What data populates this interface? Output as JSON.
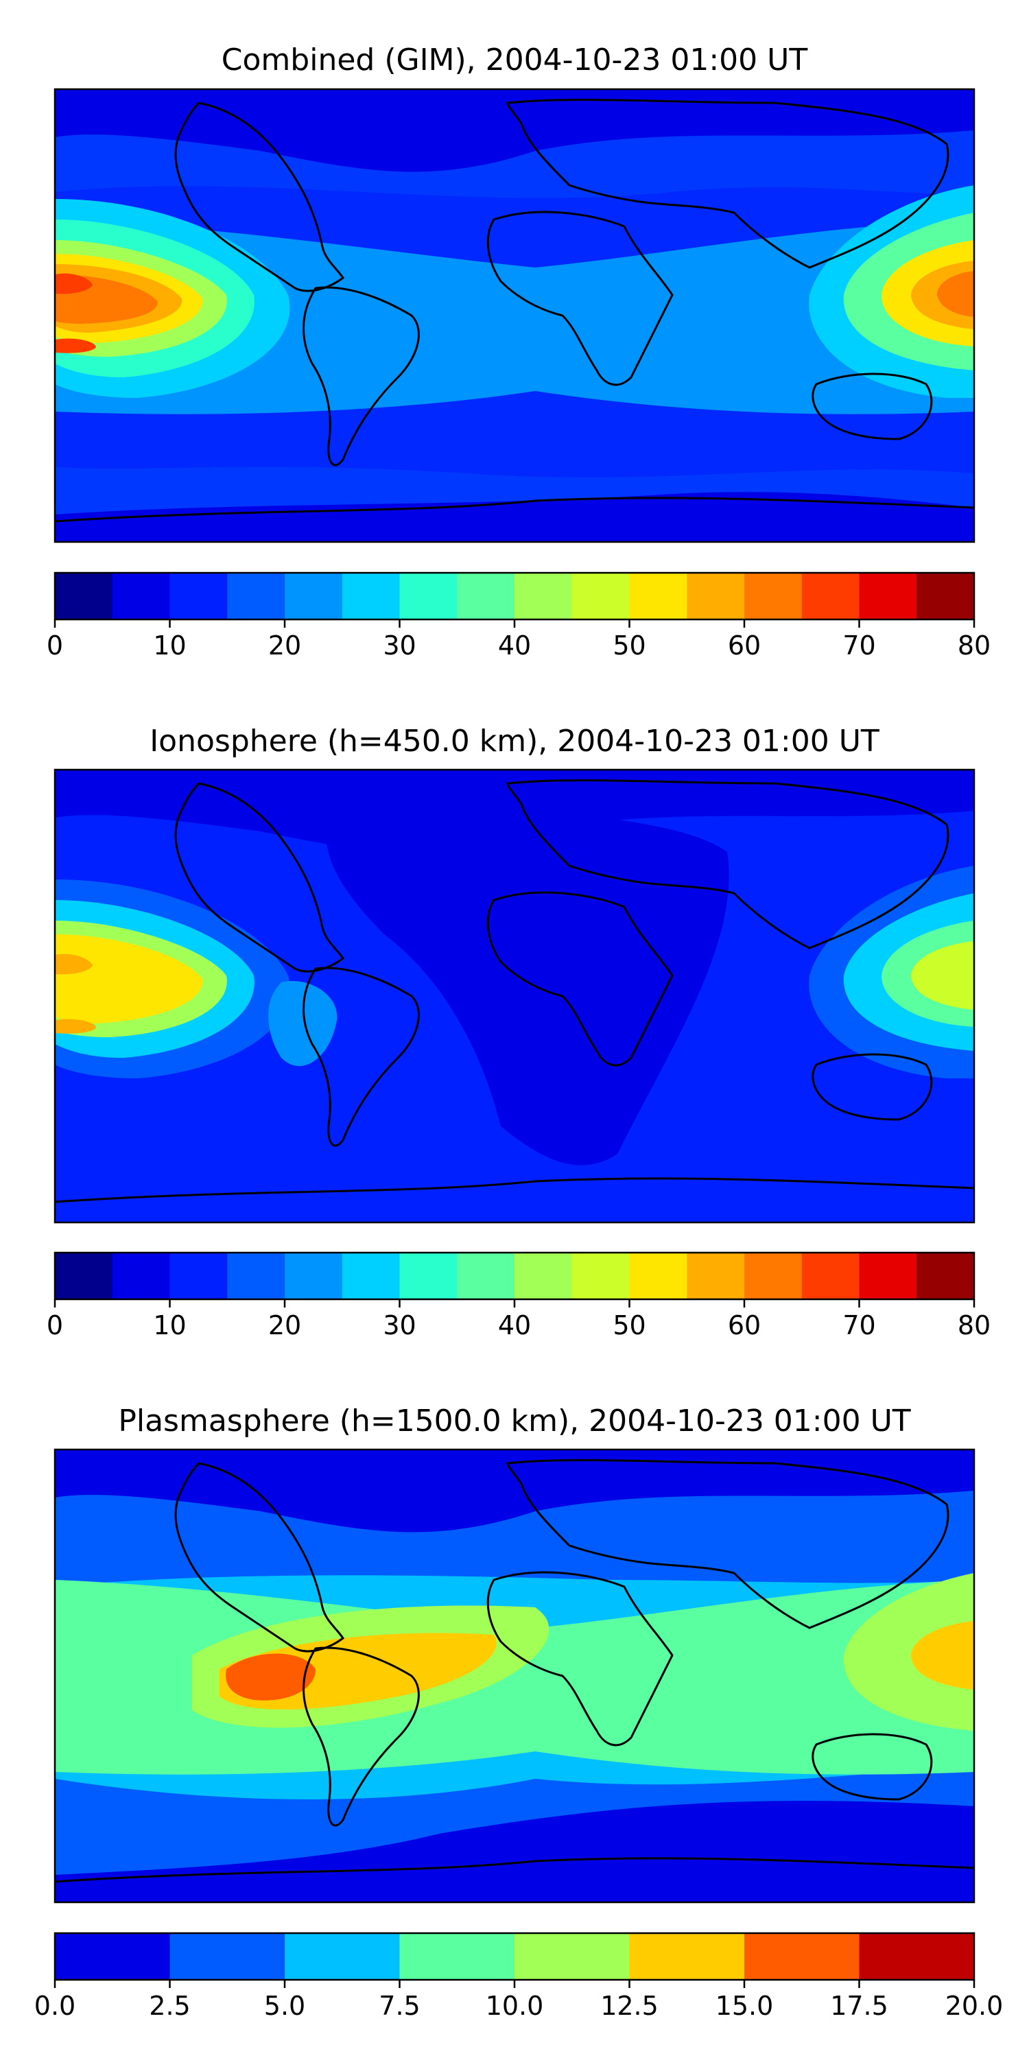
{
  "panels": [
    {
      "title": "Combined (GIM), 2004-10-23 01:00 UT",
      "colorbar": {
        "ticks": [
          "0",
          "10",
          "20",
          "30",
          "40",
          "50",
          "60",
          "70",
          "80"
        ],
        "min": 0,
        "max": 80,
        "step": 5,
        "colors": [
          "#00008c",
          "#0000e6",
          "#0020ff",
          "#005cff",
          "#0094ff",
          "#00d0ff",
          "#29ffcd",
          "#5affa0",
          "#a2ff55",
          "#ccff29",
          "#ffe600",
          "#ffae00",
          "#ff7800",
          "#ff3c00",
          "#e60000",
          "#960000"
        ]
      },
      "background": "#0038ff",
      "fields": [
        {
          "color": "#0028ff",
          "shape": "equator-belt-wide"
        },
        {
          "color": "#0094ff",
          "shape": "belt"
        },
        {
          "color": "#00d0ff",
          "shape": "pacific-west-large"
        },
        {
          "color": "#29ffcd",
          "shape": "pacific-west-mid"
        },
        {
          "color": "#a2ff55",
          "shape": "pacific-west-inner"
        },
        {
          "color": "#ffe600",
          "shape": "pacific-west-core"
        },
        {
          "color": "#ffae00",
          "shape": "pacific-west-core2"
        },
        {
          "color": "#ff7800",
          "shape": "pacific-west-peak"
        },
        {
          "color": "#ff3c00",
          "shape": "pacific-west-spot"
        },
        {
          "color": "#00d0ff",
          "shape": "asia-east-large"
        },
        {
          "color": "#5affa0",
          "shape": "asia-east-mid"
        },
        {
          "color": "#ffe600",
          "shape": "asia-east-inner"
        },
        {
          "color": "#ffae00",
          "shape": "asia-east-core"
        },
        {
          "color": "#ff7800",
          "shape": "asia-east-peak"
        },
        {
          "color": "#0000e6",
          "shape": "north-dark"
        },
        {
          "color": "#0000e6",
          "shape": "south-dark"
        }
      ]
    },
    {
      "title": "Ionosphere  (h=450.0 km), 2004-10-23 01:00 UT",
      "colorbar": {
        "ticks": [
          "0",
          "10",
          "20",
          "30",
          "40",
          "50",
          "60",
          "70",
          "80"
        ],
        "min": 0,
        "max": 80,
        "step": 5,
        "colors": [
          "#00008c",
          "#0000e6",
          "#0020ff",
          "#005cff",
          "#0094ff",
          "#00d0ff",
          "#29ffcd",
          "#5affa0",
          "#a2ff55",
          "#ccff29",
          "#ffe600",
          "#ffae00",
          "#ff7800",
          "#ff3c00",
          "#e60000",
          "#960000"
        ]
      },
      "background": "#0020ff",
      "fields": [
        {
          "color": "#0000e6",
          "shape": "africa-dark"
        },
        {
          "color": "#0000e6",
          "shape": "north-dark"
        },
        {
          "color": "#005cff",
          "shape": "pacific-west-large"
        },
        {
          "color": "#00d0ff",
          "shape": "pacific-west-mid"
        },
        {
          "color": "#a2ff55",
          "shape": "pacific-west-inner"
        },
        {
          "color": "#ffe600",
          "shape": "pacific-west-core"
        },
        {
          "color": "#ffae00",
          "shape": "pacific-west-spot"
        },
        {
          "color": "#005cff",
          "shape": "asia-east-large"
        },
        {
          "color": "#00d0ff",
          "shape": "asia-east-mid"
        },
        {
          "color": "#5affa0",
          "shape": "asia-east-inner"
        },
        {
          "color": "#ccff29",
          "shape": "asia-east-core"
        },
        {
          "color": "#0094ff",
          "shape": "south-america"
        }
      ]
    },
    {
      "title": "Plasmasphere (h=1500.0 km), 2004-10-23 01:00 UT",
      "colorbar": {
        "ticks": [
          "0.0",
          "2.5",
          "5.0",
          "7.5",
          "10.0",
          "12.5",
          "15.0",
          "17.5",
          "20.0"
        ],
        "min": 0,
        "max": 20,
        "step": 2.5,
        "colors": [
          "#0000e6",
          "#005cff",
          "#00c0ff",
          "#5affa0",
          "#a2ff55",
          "#ffcc00",
          "#ff5c00",
          "#c00000"
        ]
      },
      "background": "#005cff",
      "fields": [
        {
          "color": "#0000e6",
          "shape": "north-dark"
        },
        {
          "color": "#0000e6",
          "shape": "south-dark-east"
        },
        {
          "color": "#00c0ff",
          "shape": "belt-wide"
        },
        {
          "color": "#5affa0",
          "shape": "belt"
        },
        {
          "color": "#a2ff55",
          "shape": "atlantic-mid"
        },
        {
          "color": "#ffcc00",
          "shape": "atlantic-core"
        },
        {
          "color": "#ff5c00",
          "shape": "atlantic-peak"
        },
        {
          "color": "#a2ff55",
          "shape": "asia-east-mid"
        },
        {
          "color": "#ffcc00",
          "shape": "asia-east-core"
        }
      ]
    }
  ]
}
